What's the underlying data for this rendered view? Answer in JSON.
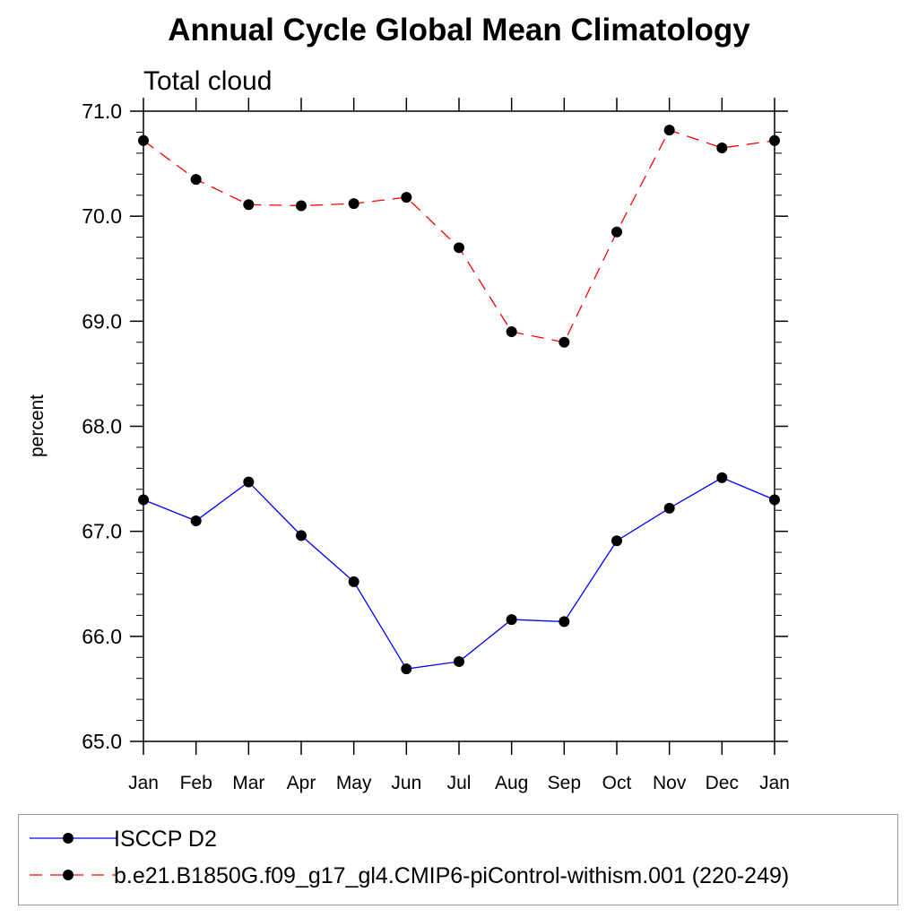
{
  "chart_data": {
    "type": "line",
    "title": "Annual Cycle Global Mean Climatology",
    "subtitle": "Total cloud",
    "xlabel": "",
    "ylabel": "percent",
    "categories": [
      "Jan",
      "Feb",
      "Mar",
      "Apr",
      "May",
      "Jun",
      "Jul",
      "Aug",
      "Sep",
      "Oct",
      "Nov",
      "Dec",
      "Jan"
    ],
    "ylim": [
      65.0,
      71.0
    ],
    "yticks": [
      "65.0",
      "66.0",
      "67.0",
      "68.0",
      "69.0",
      "70.0",
      "71.0"
    ],
    "grid": false,
    "legend_position": "bottom",
    "series": [
      {
        "name": "ISCCP D2",
        "color": "#0000ff",
        "dash": "solid",
        "values": [
          67.3,
          67.1,
          67.47,
          66.96,
          66.52,
          65.69,
          65.76,
          66.16,
          66.14,
          66.91,
          67.22,
          67.51,
          67.3
        ]
      },
      {
        "name": "b.e21.B1850G.f09_g17_gl4.CMIP6-piControl-withism.001 (220-249)",
        "color": "#ff0000",
        "dash": "dashed",
        "values": [
          70.72,
          70.35,
          70.11,
          70.1,
          70.12,
          70.18,
          69.7,
          68.9,
          68.8,
          69.85,
          70.82,
          70.65,
          70.72
        ]
      }
    ]
  }
}
